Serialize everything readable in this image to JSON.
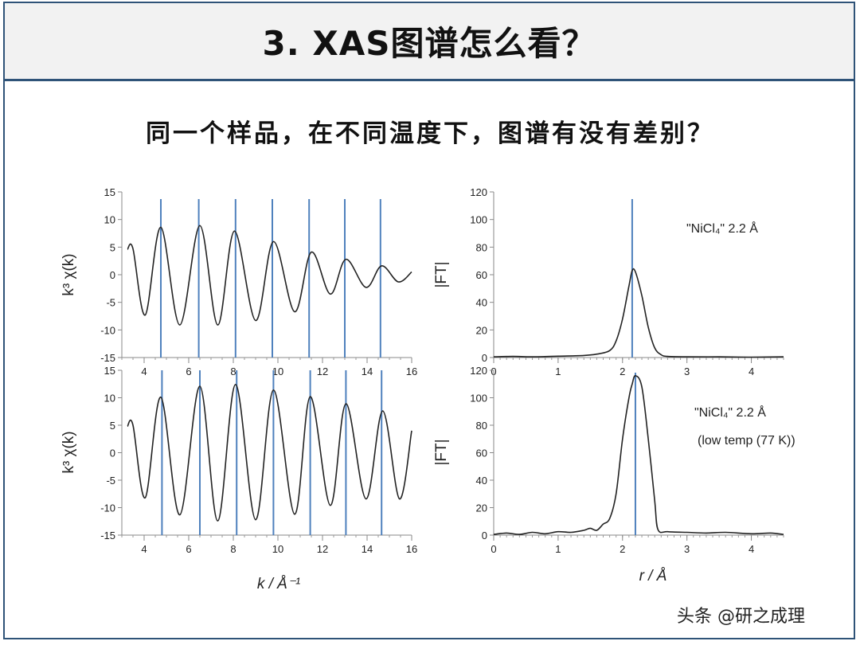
{
  "slide": {
    "title": "3. XAS图谱怎么看？",
    "subtitle": "同一个样品，在不同温度下，图谱有没有差别？",
    "watermark": "头条 @研之成理",
    "colors": {
      "frame": "#2f5378",
      "title_bg": "#f2f2f2",
      "marker_line": "#4f81bd",
      "curve": "#222222"
    }
  },
  "chart_data": [
    {
      "id": "k-space-top",
      "type": "line",
      "ylabel": "k³ χ(k)",
      "xlim": [
        3,
        16
      ],
      "ylim": [
        -15,
        15
      ],
      "xticks": [
        4,
        6,
        8,
        10,
        12,
        14,
        16
      ],
      "yticks": [
        15,
        10,
        5,
        0,
        -5,
        -10,
        -15
      ],
      "series": [
        {
          "x": [
            3.25,
            3.5,
            4.05,
            4.75,
            5.6,
            6.5,
            7.3,
            8.05,
            9.0,
            9.8,
            10.75,
            11.5,
            12.35,
            13.05,
            13.95,
            14.65,
            15.4,
            16.0
          ],
          "y": [
            4.6,
            4.7,
            -7.3,
            8.6,
            -9.1,
            8.9,
            -9.1,
            7.9,
            -8.3,
            6.0,
            -6.7,
            4.1,
            -3.5,
            2.8,
            -2.3,
            1.6,
            -1.3,
            0.5
          ]
        }
      ],
      "markers_x": [
        4.75,
        6.45,
        8.1,
        9.75,
        11.4,
        13.0,
        14.6
      ]
    },
    {
      "id": "k-space-bottom",
      "type": "line",
      "xlabel": "k / Å⁻¹",
      "ylabel": "k³ χ(k)",
      "xlim": [
        3,
        16
      ],
      "ylim": [
        -15,
        15
      ],
      "xticks": [
        4,
        6,
        8,
        10,
        12,
        14,
        16
      ],
      "yticks": [
        15,
        10,
        5,
        0,
        -5,
        -10,
        -15
      ],
      "series": [
        {
          "x": [
            3.25,
            3.5,
            4.05,
            4.75,
            5.6,
            6.5,
            7.3,
            8.1,
            9.0,
            9.8,
            10.75,
            11.45,
            12.35,
            13.05,
            13.95,
            14.7,
            15.45,
            16.0
          ],
          "y": [
            4.8,
            5.0,
            -8.2,
            10.1,
            -11.3,
            12.1,
            -12.4,
            12.4,
            -12.2,
            11.4,
            -11.2,
            10.2,
            -9.6,
            8.9,
            -8.4,
            7.6,
            -8.4,
            4.0
          ]
        }
      ],
      "markers_x": [
        4.8,
        6.5,
        8.15,
        9.8,
        11.45,
        13.05,
        14.65
      ]
    },
    {
      "id": "r-space-top",
      "type": "line",
      "ylabel": "|FT|",
      "xlim": [
        0,
        4.5
      ],
      "ylim": [
        0,
        120
      ],
      "xticks": [
        0,
        1,
        2,
        3,
        4
      ],
      "yticks": [
        120,
        100,
        80,
        60,
        40,
        20,
        0
      ],
      "annotations": [
        {
          "name": "\"NiCl₄\" 2.2 Å"
        }
      ],
      "series": [
        {
          "x": [
            0.0,
            0.3,
            0.6,
            1.0,
            1.4,
            1.6,
            1.8,
            1.9,
            2.0,
            2.1,
            2.15,
            2.2,
            2.3,
            2.4,
            2.5,
            2.6,
            2.7,
            3.0,
            3.5,
            4.0,
            4.5
          ],
          "y": [
            0.5,
            0.8,
            0.5,
            1.0,
            1.5,
            2.5,
            5.0,
            12.0,
            28.0,
            52.0,
            63.0,
            62.0,
            45.0,
            22.0,
            7.0,
            2.0,
            0.8,
            0.5,
            0.5,
            0.3,
            0.5
          ]
        }
      ],
      "markers_x": [
        2.15
      ]
    },
    {
      "id": "r-space-bottom",
      "type": "line",
      "xlabel": "r / Å",
      "ylabel": "|FT|",
      "xlim": [
        0,
        4.5
      ],
      "ylim": [
        0,
        120
      ],
      "xticks": [
        0,
        1,
        2,
        3,
        4
      ],
      "yticks": [
        120,
        100,
        80,
        60,
        40,
        20,
        0
      ],
      "annotations": [
        {
          "name": "\"NiCl₄\" 2.2 Å"
        },
        {
          "name": "(low temp (77 K))"
        }
      ],
      "series": [
        {
          "x": [
            0.0,
            0.2,
            0.4,
            0.6,
            0.8,
            1.0,
            1.2,
            1.4,
            1.5,
            1.6,
            1.7,
            1.8,
            1.9,
            2.0,
            2.1,
            2.15,
            2.2,
            2.3,
            2.4,
            2.5,
            2.55,
            2.7,
            3.0,
            3.3,
            3.6,
            4.0,
            4.3,
            4.5
          ],
          "y": [
            0.5,
            1.5,
            0.5,
            2.0,
            1.0,
            2.5,
            2.0,
            3.5,
            5.0,
            3.5,
            8.0,
            12.0,
            30.0,
            70.0,
            100.0,
            110.0,
            116.0,
            108.0,
            70.0,
            25.0,
            4.0,
            2.5,
            2.0,
            1.5,
            2.0,
            1.0,
            1.5,
            0.5
          ]
        }
      ],
      "markers_x": [
        2.2
      ]
    }
  ]
}
